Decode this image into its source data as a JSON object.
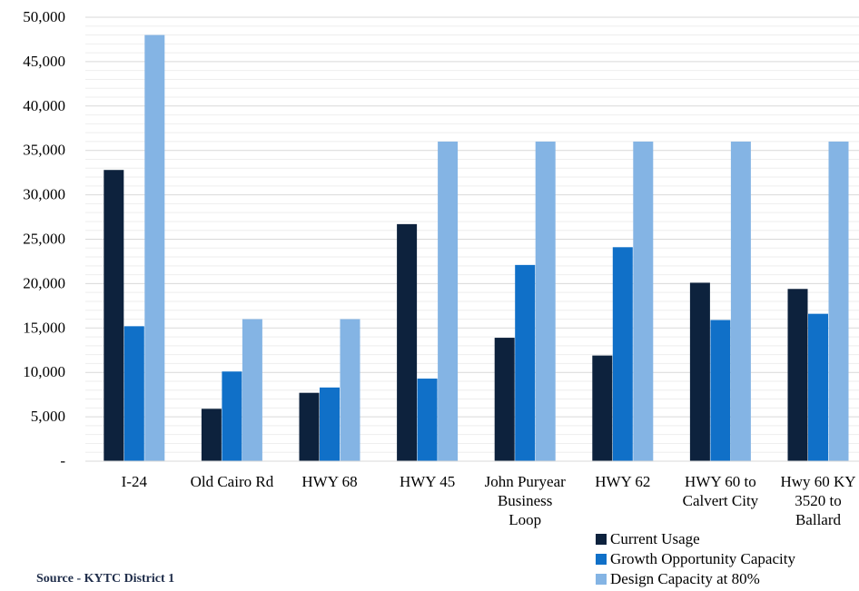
{
  "chart_data": {
    "type": "bar",
    "categories": [
      [
        "I-24"
      ],
      [
        "Old Cairo Rd"
      ],
      [
        "HWY 68"
      ],
      [
        "HWY 45"
      ],
      [
        "John Puryear",
        "Business",
        "Loop"
      ],
      [
        "HWY 62"
      ],
      [
        "HWY 60 to",
        "Calvert City"
      ],
      [
        "Hwy 60 KY",
        "3520 to",
        "Ballard"
      ]
    ],
    "series": [
      {
        "name": "Current Usage",
        "color": "#0d223d",
        "values": [
          32800,
          5900,
          7700,
          26700,
          13900,
          11900,
          20100,
          19400
        ]
      },
      {
        "name": "Growth Opportunity Capacity",
        "color": "#1070c8",
        "values": [
          15200,
          10100,
          8300,
          9300,
          22100,
          24100,
          15900,
          16600
        ]
      },
      {
        "name": "Design Capacity at 80%",
        "color": "#84b4e4",
        "values": [
          48000,
          16000,
          16000,
          36000,
          36000,
          36000,
          36000,
          36000
        ]
      }
    ],
    "ylim": [
      0,
      50000
    ],
    "yticks": [
      0,
      5000,
      10000,
      15000,
      20000,
      25000,
      30000,
      35000,
      40000,
      45000,
      50000
    ],
    "ytick_labels": [
      "-",
      "5,000",
      "10,000",
      "15,000",
      "20,000",
      "25,000",
      "30,000",
      "35,000",
      "40,000",
      "45,000",
      "50,000"
    ],
    "minor_grid_step": 1000,
    "grid": true,
    "legend_position": "bottom-right"
  },
  "source": "Source - KYTC District 1"
}
